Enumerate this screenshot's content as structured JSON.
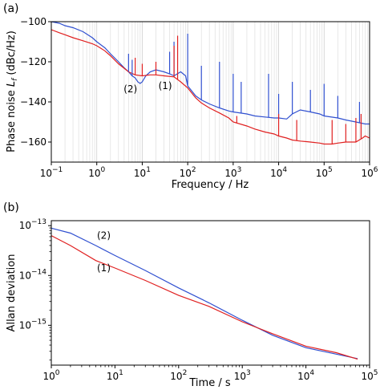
{
  "chart_data": [
    {
      "panel_label": "(a)",
      "type": "line",
      "xlabel": "Frequency / Hz",
      "ylabel": "Phase noise L_f (dBc/Hz)",
      "ylabel_parts": [
        "Phase noise ",
        "L",
        "f",
        " (dBc/Hz)"
      ],
      "xscale": "log",
      "xlim": [
        0.1,
        1000000
      ],
      "ylim": [
        -170,
        -100
      ],
      "x_ticks": [
        {
          "value": 0.1,
          "base": "10",
          "exp": "−1"
        },
        {
          "value": 1,
          "base": "10",
          "exp": "0"
        },
        {
          "value": 10,
          "base": "10",
          "exp": "1"
        },
        {
          "value": 100,
          "base": "10",
          "exp": "2"
        },
        {
          "value": 1000,
          "base": "10",
          "exp": "3"
        },
        {
          "value": 10000,
          "base": "10",
          "exp": "4"
        },
        {
          "value": 100000,
          "base": "10",
          "exp": "5"
        },
        {
          "value": 1000000,
          "base": "10",
          "exp": "6"
        }
      ],
      "y_ticks": [
        {
          "value": -100,
          "label": "−100"
        },
        {
          "value": -120,
          "label": "−120"
        },
        {
          "value": -140,
          "label": "−140"
        },
        {
          "value": -160,
          "label": "−160"
        }
      ],
      "grid": "vertical minor log gridlines",
      "series": [
        {
          "label": "(2)",
          "color": "#3050d0",
          "label_pos": [
            5.5,
            -133.5
          ],
          "points": [
            [
              0.1,
              -100
            ],
            [
              0.15,
              -100.8
            ],
            [
              0.2,
              -102
            ],
            [
              0.3,
              -103
            ],
            [
              0.5,
              -105
            ],
            [
              0.8,
              -108
            ],
            [
              1,
              -110
            ],
            [
              1.5,
              -113
            ],
            [
              2,
              -116
            ],
            [
              3,
              -120
            ],
            [
              4,
              -123
            ],
            [
              5,
              -125
            ],
            [
              6,
              -127
            ],
            [
              7,
              -128
            ],
            [
              8,
              -130
            ],
            [
              9,
              -130.8
            ],
            [
              10,
              -130
            ],
            [
              12,
              -127
            ],
            [
              15,
              -125
            ],
            [
              20,
              -124
            ],
            [
              30,
              -125
            ],
            [
              40,
              -126
            ],
            [
              50,
              -127
            ],
            [
              70,
              -125
            ],
            [
              90,
              -127
            ],
            [
              100,
              -132
            ],
            [
              150,
              -137
            ],
            [
              200,
              -139
            ],
            [
              300,
              -141
            ],
            [
              500,
              -143
            ],
            [
              800,
              -144.5
            ],
            [
              1000,
              -145
            ],
            [
              2000,
              -146
            ],
            [
              3000,
              -147
            ],
            [
              5000,
              -147.5
            ],
            [
              8000,
              -148
            ],
            [
              10000,
              -148
            ],
            [
              15000,
              -148.5
            ],
            [
              20000,
              -146
            ],
            [
              30000,
              -144
            ],
            [
              50000,
              -145
            ],
            [
              80000,
              -146
            ],
            [
              100000,
              -147
            ],
            [
              200000,
              -148
            ],
            [
              300000,
              -149
            ],
            [
              500000,
              -150
            ],
            [
              800000,
              -151
            ],
            [
              1000000,
              -151
            ]
          ]
        },
        {
          "label": "(1)",
          "color": "#e02020",
          "label_pos": [
            32,
            -132
          ],
          "points": [
            [
              0.1,
              -104
            ],
            [
              0.15,
              -105.5
            ],
            [
              0.2,
              -106.5
            ],
            [
              0.3,
              -108
            ],
            [
              0.5,
              -109.5
            ],
            [
              0.8,
              -111
            ],
            [
              1,
              -112
            ],
            [
              1.5,
              -114.5
            ],
            [
              2,
              -117
            ],
            [
              3,
              -121
            ],
            [
              5,
              -125
            ],
            [
              7,
              -126.5
            ],
            [
              10,
              -127
            ],
            [
              15,
              -126.5
            ],
            [
              20,
              -126.5
            ],
            [
              30,
              -127
            ],
            [
              50,
              -127.5
            ],
            [
              70,
              -130
            ],
            [
              100,
              -133
            ],
            [
              150,
              -138
            ],
            [
              200,
              -140.5
            ],
            [
              300,
              -143
            ],
            [
              500,
              -145.5
            ],
            [
              800,
              -148
            ],
            [
              1000,
              -150
            ],
            [
              2000,
              -152
            ],
            [
              3000,
              -153.5
            ],
            [
              5000,
              -155
            ],
            [
              8000,
              -156
            ],
            [
              10000,
              -157
            ],
            [
              15000,
              -158
            ],
            [
              20000,
              -159
            ],
            [
              30000,
              -159.5
            ],
            [
              50000,
              -160
            ],
            [
              80000,
              -160.5
            ],
            [
              100000,
              -161
            ],
            [
              150000,
              -161
            ],
            [
              200000,
              -160.5
            ],
            [
              300000,
              -160
            ],
            [
              500000,
              -160
            ],
            [
              700000,
              -158
            ],
            [
              800000,
              -157
            ],
            [
              1000000,
              -158
            ]
          ]
        }
      ],
      "spikes": [
        {
          "series": 0,
          "x": 5,
          "to": -116
        },
        {
          "series": 0,
          "x": 6,
          "to": -119
        },
        {
          "series": 0,
          "x": 40,
          "to": -115
        },
        {
          "series": 0,
          "x": 50,
          "to": -110
        },
        {
          "series": 0,
          "x": 100,
          "to": -106
        },
        {
          "series": 0,
          "x": 200,
          "to": -122
        },
        {
          "series": 0,
          "x": 500,
          "to": -120
        },
        {
          "series": 0,
          "x": 1000,
          "to": -126
        },
        {
          "series": 0,
          "x": 1500,
          "to": -130
        },
        {
          "series": 0,
          "x": 6000,
          "to": -126
        },
        {
          "series": 0,
          "x": 10000,
          "to": -136
        },
        {
          "series": 0,
          "x": 20000,
          "to": -130
        },
        {
          "series": 0,
          "x": 50000,
          "to": -134
        },
        {
          "series": 0,
          "x": 100000,
          "to": -131
        },
        {
          "series": 0,
          "x": 200000,
          "to": -137
        },
        {
          "series": 0,
          "x": 600000,
          "to": -140
        },
        {
          "series": 1,
          "x": 7,
          "to": -118
        },
        {
          "series": 1,
          "x": 10,
          "to": -121
        },
        {
          "series": 1,
          "x": 20,
          "to": -120
        },
        {
          "series": 1,
          "x": 50,
          "to": -112
        },
        {
          "series": 1,
          "x": 60,
          "to": -107
        },
        {
          "series": 1,
          "x": 1200,
          "to": -147
        },
        {
          "series": 1,
          "x": 10000,
          "to": -146
        },
        {
          "series": 1,
          "x": 25000,
          "to": -149
        },
        {
          "series": 1,
          "x": 150000,
          "to": -149
        },
        {
          "series": 1,
          "x": 300000,
          "to": -151
        },
        {
          "series": 1,
          "x": 500000,
          "to": -148
        },
        {
          "series": 1,
          "x": 650000,
          "to": -146
        }
      ]
    },
    {
      "panel_label": "(b)",
      "type": "line",
      "xlabel": "Time / s",
      "ylabel": "Allan deviation",
      "xscale": "log",
      "yscale": "log",
      "xlim": [
        1,
        100000
      ],
      "ylim_exp": [
        -15.8,
        -12.9
      ],
      "x_ticks": [
        {
          "value": 1,
          "base": "10",
          "exp": "0"
        },
        {
          "value": 10,
          "base": "10",
          "exp": "1"
        },
        {
          "value": 100,
          "base": "10",
          "exp": "2"
        },
        {
          "value": 1000,
          "base": "10",
          "exp": "3"
        },
        {
          "value": 10000,
          "base": "10",
          "exp": "4"
        },
        {
          "value": 100000,
          "base": "10",
          "exp": "5"
        }
      ],
      "y_ticks": [
        {
          "exp_value": -13,
          "base": "10",
          "exp": "−13"
        },
        {
          "exp_value": -14,
          "base": "10",
          "exp": "−14"
        },
        {
          "exp_value": -15,
          "base": "10",
          "exp": "−15"
        }
      ],
      "grid": "none",
      "series": [
        {
          "label": "(2)",
          "color": "#3050d0",
          "label_x": 2.8,
          "label_exp": -13.2,
          "points_exp": [
            [
              1,
              -13.05
            ],
            [
              2,
              -13.15
            ],
            [
              5,
              -13.4
            ],
            [
              10,
              -13.6
            ],
            [
              30,
              -13.9
            ],
            [
              100,
              -14.25
            ],
            [
              300,
              -14.55
            ],
            [
              1000,
              -14.9
            ],
            [
              3000,
              -15.2
            ],
            [
              10000,
              -15.45
            ],
            [
              30000,
              -15.58
            ],
            [
              65000,
              -15.67
            ]
          ]
        },
        {
          "label": "(1)",
          "color": "#e02020",
          "label_x": 2.8,
          "label_exp": -13.85,
          "points_exp": [
            [
              1,
              -13.2
            ],
            [
              2,
              -13.4
            ],
            [
              5,
              -13.7
            ],
            [
              10,
              -13.85
            ],
            [
              30,
              -14.1
            ],
            [
              100,
              -14.4
            ],
            [
              300,
              -14.62
            ],
            [
              1000,
              -14.93
            ],
            [
              3000,
              -15.17
            ],
            [
              10000,
              -15.42
            ],
            [
              30000,
              -15.55
            ],
            [
              65000,
              -15.68
            ]
          ]
        }
      ]
    }
  ]
}
